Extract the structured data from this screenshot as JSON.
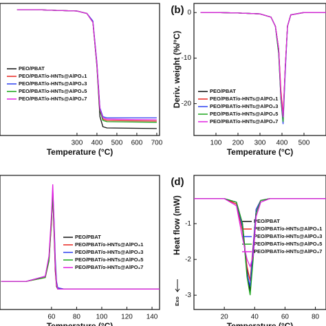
{
  "chart_data": [
    {
      "type": "line",
      "x_label": "Temperature (°C)",
      "xlim": [
        -86,
        714
      ],
      "ylim": [
        0,
        105
      ],
      "xticks": [
        300,
        400,
        500,
        600,
        700
      ],
      "x": [
        0,
        100,
        200,
        300,
        350,
        380,
        400,
        415,
        430,
        450,
        700
      ],
      "series": [
        {
          "name": "PEO/PBAT",
          "color": "#111111",
          "values": [
            100,
            100,
            99.5,
            99,
            97,
            90,
            55,
            15,
            7,
            6,
            5.5
          ]
        },
        {
          "name": "PEO/PBAT/o-HNTs@AlPO₄1",
          "color": "#e8231e",
          "values": [
            100,
            100,
            99.5,
            99,
            97,
            90,
            57,
            20,
            13,
            12,
            11.5
          ]
        },
        {
          "name": "PEO/PBAT/o-HNTs@AlPO₄3",
          "color": "#2a3ff0",
          "values": [
            100,
            100,
            99.5,
            99,
            97,
            91,
            58,
            22,
            15,
            14,
            14
          ]
        },
        {
          "name": "PEO/PBAT/o-HNTs@AlPO₄5",
          "color": "#1aa51a",
          "values": [
            100,
            100,
            99.5,
            99,
            97,
            90,
            56,
            20,
            12,
            11,
            10.5
          ]
        },
        {
          "name": "PEO/PBAT/o-HNTs@AlPO₄7",
          "color": "#e020e0",
          "values": [
            100,
            100,
            99.5,
            99,
            97,
            90,
            57,
            21,
            14,
            13,
            12.5
          ]
        }
      ]
    },
    {
      "type": "line",
      "panel_label": "(b)",
      "x_label": "Temperature (°C)",
      "y_label": "Deriv. weight (%/°C)",
      "xlim": [
        0,
        600
      ],
      "ylim": [
        -27,
        2
      ],
      "xticks": [
        100,
        200,
        300,
        400,
        500
      ],
      "yticks": [
        0,
        -10,
        -20
      ],
      "x": [
        30,
        100,
        200,
        300,
        350,
        370,
        385,
        395,
        405,
        415,
        425,
        440,
        500,
        600
      ],
      "series": [
        {
          "name": "PEO/PBAT",
          "color": "#111111",
          "values": [
            0,
            0,
            -0.1,
            -0.3,
            -1,
            -3,
            -8,
            -18,
            -23,
            -12,
            -3,
            -0.5,
            0,
            0
          ]
        },
        {
          "name": "PEO/PBAT/o-HNTs@AlPO₄1",
          "color": "#e8231e",
          "values": [
            0,
            0,
            -0.1,
            -0.3,
            -1,
            -3,
            -8,
            -17,
            -22.5,
            -12,
            -3,
            -0.5,
            0,
            0
          ]
        },
        {
          "name": "PEO/PBAT/o-HNTs@AlPO₄3",
          "color": "#2a3ff0",
          "values": [
            0,
            0,
            -0.1,
            -0.3,
            -1,
            -3,
            -9,
            -19,
            -24.5,
            -13,
            -3,
            -0.5,
            0,
            0
          ]
        },
        {
          "name": "PEO/PBAT/o-HNTs@AlPO₄5",
          "color": "#1aa51a",
          "values": [
            0,
            0,
            -0.1,
            -0.3,
            -1,
            -3,
            -9,
            -19,
            -24,
            -12,
            -3,
            -0.5,
            0,
            0
          ]
        },
        {
          "name": "PEO/PBAT/o-HNTs@AlPO₄7",
          "color": "#e020e0",
          "values": [
            0,
            0,
            -0.1,
            -0.3,
            -1,
            -3,
            -8,
            -18,
            -23,
            -12,
            -3,
            -0.5,
            0,
            0
          ]
        }
      ]
    },
    {
      "type": "line",
      "x_label": "Temperature (°C)",
      "xlim": [
        19,
        146
      ],
      "ylim": [
        0,
        105
      ],
      "xticks": [
        60,
        80,
        100,
        120,
        140
      ],
      "x": [
        20,
        40,
        55,
        58,
        60,
        61,
        62,
        63,
        64,
        65,
        70,
        100,
        140,
        146
      ],
      "series": [
        {
          "name": "PEO/PBAT",
          "color": "#111111",
          "values": [
            22,
            22,
            26,
            40,
            70,
            90,
            60,
            30,
            18,
            16,
            16,
            16,
            16,
            16
          ]
        },
        {
          "name": "PEO/PBAT/o-HNTs@AlPO₄1",
          "color": "#e8231e",
          "values": [
            22,
            22,
            25,
            38,
            68,
            92,
            65,
            32,
            19,
            16,
            16,
            16,
            16,
            16
          ]
        },
        {
          "name": "PEO/PBAT/o-HNTs@AlPO₄3",
          "color": "#2a3ff0",
          "values": [
            22,
            22,
            26,
            40,
            72,
            94,
            70,
            40,
            22,
            17,
            16,
            16,
            16,
            16
          ]
        },
        {
          "name": "PEO/PBAT/o-HNTs@AlPO₄5",
          "color": "#1aa51a",
          "values": [
            22,
            22,
            25,
            38,
            70,
            90,
            66,
            36,
            20,
            16,
            16,
            16,
            16,
            16
          ]
        },
        {
          "name": "PEO/PBAT/o-HNTs@AlPO₄7",
          "color": "#e020e0",
          "values": [
            22,
            22,
            26,
            42,
            75,
            98,
            68,
            34,
            20,
            16,
            16,
            16,
            16,
            16
          ]
        }
      ]
    },
    {
      "type": "line",
      "panel_label": "(d)",
      "x_label": "Temperature (°C)",
      "y_label": "Heat flow (mW)",
      "annotation": "Exo",
      "xlim": [
        0,
        87
      ],
      "ylim": [
        -3.4,
        0.35
      ],
      "xticks": [
        20,
        40,
        60,
        80
      ],
      "yticks": [
        -1,
        -2,
        -3
      ],
      "x": [
        0,
        20,
        28,
        32,
        35,
        37,
        39,
        41,
        44,
        50,
        87
      ],
      "series": [
        {
          "name": "PEO/PBAT",
          "color": "#111111",
          "values": [
            -0.3,
            -0.3,
            -0.4,
            -1.0,
            -2.3,
            -2.9,
            -1.8,
            -0.6,
            -0.35,
            -0.3,
            -0.3
          ]
        },
        {
          "name": "PEO/PBAT/o-HNTs@AlPO₄1",
          "color": "#e8231e",
          "values": [
            -0.3,
            -0.3,
            -0.45,
            -1.2,
            -2.2,
            -2.6,
            -1.6,
            -0.6,
            -0.35,
            -0.3,
            -0.3
          ]
        },
        {
          "name": "PEO/PBAT/o-HNTs@AlPO₄3",
          "color": "#2a3ff0",
          "values": [
            -0.3,
            -0.3,
            -0.4,
            -1.1,
            -2.4,
            -2.75,
            -1.7,
            -0.6,
            -0.35,
            -0.3,
            -0.3
          ]
        },
        {
          "name": "PEO/PBAT/o-HNTs@AlPO₄5",
          "color": "#1aa51a",
          "values": [
            -0.3,
            -0.3,
            -0.4,
            -1.0,
            -2.5,
            -3.0,
            -2.0,
            -0.7,
            -0.35,
            -0.3,
            -0.3
          ]
        },
        {
          "name": "PEO/PBAT/o-HNTs@AlPO₄7",
          "color": "#e020e0",
          "values": [
            -0.3,
            -0.3,
            -0.5,
            -1.4,
            -2.0,
            -2.2,
            -1.9,
            -0.8,
            -0.4,
            -0.3,
            -0.3
          ]
        }
      ]
    }
  ]
}
